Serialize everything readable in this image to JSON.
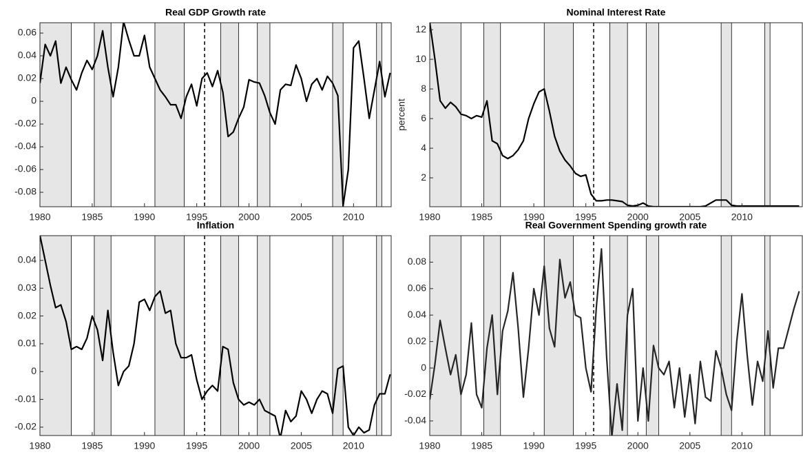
{
  "chart_data": [
    {
      "type": "line",
      "title": "Real GDP Growth rate",
      "x": [
        1980,
        1980.5,
        1981,
        1981.5,
        1982,
        1982.5,
        1983,
        1983.5,
        1984,
        1984.5,
        1985,
        1985.5,
        1986,
        1986.5,
        1987,
        1987.5,
        1988,
        1988.5,
        1989,
        1989.5,
        1990,
        1990.5,
        1991,
        1991.5,
        1992,
        1992.5,
        1993,
        1993.5,
        1994,
        1994.5,
        1995,
        1995.5,
        1996,
        1996.5,
        1997,
        1997.5,
        1998,
        1998.5,
        1999,
        1999.5,
        2000,
        2000.5,
        2001,
        2001.5,
        2002,
        2002.5,
        2003,
        2003.5,
        2004,
        2004.5,
        2005,
        2005.5,
        2006,
        2006.5,
        2007,
        2007.5,
        2008,
        2008.5,
        2009,
        2009.5,
        2010,
        2010.5,
        2011,
        2011.5,
        2012,
        2012.5,
        2013,
        2013.5
      ],
      "values": [
        0.016,
        0.05,
        0.04,
        0.053,
        0.016,
        0.03,
        0.019,
        0.01,
        0.025,
        0.036,
        0.028,
        0.04,
        0.062,
        0.03,
        0.004,
        0.03,
        0.07,
        0.054,
        0.04,
        0.04,
        0.058,
        0.03,
        0.02,
        0.01,
        0.004,
        -0.003,
        -0.003,
        -0.015,
        0.004,
        0.015,
        -0.004,
        0.02,
        0.025,
        0.013,
        0.027,
        0.008,
        -0.031,
        -0.027,
        -0.015,
        -0.005,
        0.019,
        0.017,
        0.016,
        0.005,
        -0.01,
        -0.02,
        0.01,
        0.015,
        0.014,
        0.032,
        0.02,
        0.0,
        0.015,
        0.02,
        0.01,
        0.022,
        0.016,
        0.005,
        -0.092,
        -0.06,
        0.047,
        0.053,
        0.02,
        -0.015,
        0.01,
        0.035,
        0.004,
        0.025
      ],
      "color": "#000000",
      "xlim": [
        1980,
        2013.6
      ],
      "xticks": [
        1980,
        1985,
        1990,
        1995,
        2000,
        2005,
        2010
      ],
      "ylim": [
        -0.0927,
        0.0691
      ],
      "yticks": [
        -0.08,
        -0.06,
        -0.04,
        -0.02,
        0,
        0.02,
        0.04,
        0.06
      ],
      "bands": [
        [
          1980,
          1983
        ],
        [
          1985.2,
          1986.8
        ],
        [
          1991,
          1993.8
        ],
        [
          1997.3,
          1999
        ],
        [
          2000.8,
          2002
        ],
        [
          2008,
          2009
        ],
        [
          2012.2,
          2012.7
        ]
      ],
      "vline": 1995.75
    },
    {
      "type": "line",
      "title": "Nominal Interest Rate",
      "ylabel": "percent",
      "x": [
        1980,
        1980.5,
        1981,
        1981.5,
        1982,
        1982.5,
        1983,
        1983.5,
        1984,
        1984.5,
        1985,
        1985.5,
        1986,
        1986.5,
        1987,
        1987.5,
        1988,
        1988.5,
        1989,
        1989.5,
        1990,
        1990.5,
        1991,
        1991.5,
        1992,
        1992.5,
        1993,
        1993.5,
        1994,
        1994.5,
        1995,
        1995.5,
        1996,
        1996.5,
        1997,
        1997.5,
        1998,
        1998.5,
        1999,
        1999.5,
        2000,
        2000.5,
        2001,
        2001.5,
        2002,
        2002.5,
        2003,
        2003.5,
        2004,
        2004.5,
        2005,
        2005.5,
        2006,
        2006.5,
        2007,
        2007.5,
        2008,
        2008.5,
        2009,
        2009.5,
        2010,
        2010.5,
        2011,
        2011.5,
        2012,
        2012.5,
        2013,
        2013.5,
        2014,
        2014.5,
        2015,
        2015.5
      ],
      "values": [
        12.5,
        10,
        7.2,
        6.7,
        7.1,
        6.8,
        6.3,
        6.2,
        6.0,
        6.2,
        6.1,
        7.2,
        4.5,
        4.3,
        3.5,
        3.3,
        3.5,
        3.9,
        4.5,
        6,
        7.0,
        7.8,
        8.0,
        6.5,
        4.8,
        3.8,
        3.2,
        2.8,
        2.3,
        2.1,
        2.2,
        0.9,
        0.45,
        0.45,
        0.5,
        0.5,
        0.45,
        0.4,
        0.15,
        0.1,
        0.15,
        0.3,
        0.1,
        0.05,
        0.05,
        0.05,
        0.05,
        0.05,
        0.05,
        0.05,
        0.05,
        0.05,
        0.05,
        0.1,
        0.3,
        0.5,
        0.5,
        0.5,
        0.15,
        0.1,
        0.1,
        0.1,
        0.1,
        0.1,
        0.1,
        0.1,
        0.1,
        0.1,
        0.1,
        0.1,
        0.1,
        0.1
      ],
      "color": "#000000",
      "xlim": [
        1980,
        2015.8
      ],
      "xticks": [
        1980,
        1985,
        1990,
        1995,
        2000,
        2005,
        2010
      ],
      "ylim": [
        0.05,
        12.47
      ],
      "yticks": [
        2,
        4,
        6,
        8,
        10,
        12
      ],
      "bands": [
        [
          1980,
          1983
        ],
        [
          1985.2,
          1986.8
        ],
        [
          1991,
          1993.8
        ],
        [
          1997.3,
          1999
        ],
        [
          2000.8,
          2002
        ],
        [
          2008,
          2009
        ],
        [
          2012.2,
          2012.7
        ]
      ],
      "vline": 1995.75
    },
    {
      "type": "line",
      "title": "Inflation",
      "x": [
        1980,
        1980.5,
        1981,
        1981.5,
        1982,
        1982.5,
        1983,
        1983.5,
        1984,
        1984.5,
        1985,
        1985.5,
        1986,
        1986.5,
        1987,
        1987.5,
        1988,
        1988.5,
        1989,
        1989.5,
        1990,
        1990.5,
        1991,
        1991.5,
        1992,
        1992.5,
        1993,
        1993.5,
        1994,
        1994.5,
        1995,
        1995.5,
        1996,
        1996.5,
        1997,
        1997.5,
        1998,
        1998.5,
        1999,
        1999.5,
        2000,
        2000.5,
        2001,
        2001.5,
        2002,
        2002.5,
        2003,
        2003.5,
        2004,
        2004.5,
        2005,
        2005.5,
        2006,
        2006.5,
        2007,
        2007.5,
        2008,
        2008.5,
        2009,
        2009.5,
        2010,
        2010.5,
        2011,
        2011.5,
        2012,
        2012.5,
        2013,
        2013.5
      ],
      "values": [
        0.049,
        0.04,
        0.031,
        0.023,
        0.024,
        0.018,
        0.008,
        0.009,
        0.008,
        0.012,
        0.02,
        0.015,
        0.004,
        0.022,
        0.007,
        -0.005,
        0.0,
        0.002,
        0.01,
        0.025,
        0.026,
        0.022,
        0.027,
        0.029,
        0.021,
        0.022,
        0.01,
        0.005,
        0.005,
        0.006,
        -0.003,
        -0.01,
        -0.007,
        -0.005,
        -0.007,
        0.009,
        0.008,
        -0.004,
        -0.01,
        -0.012,
        -0.011,
        -0.012,
        -0.01,
        -0.014,
        -0.015,
        -0.016,
        -0.024,
        -0.014,
        -0.018,
        -0.016,
        -0.007,
        -0.01,
        -0.015,
        -0.01,
        -0.007,
        -0.008,
        -0.015,
        0.001,
        0.002,
        -0.02,
        -0.023,
        -0.02,
        -0.022,
        -0.021,
        -0.012,
        -0.008,
        -0.008,
        -0.001
      ],
      "color": "#000000",
      "xlim": [
        1980,
        2013.6
      ],
      "xticks": [
        1980,
        1985,
        1990,
        1995,
        2000,
        2005,
        2010
      ],
      "ylim": [
        -0.023,
        0.0489
      ],
      "yticks": [
        -0.02,
        -0.01,
        0,
        0.01,
        0.02,
        0.03,
        0.04
      ],
      "bands": [
        [
          1980,
          1983
        ],
        [
          1985.2,
          1986.8
        ],
        [
          1991,
          1993.8
        ],
        [
          1997.3,
          1999
        ],
        [
          2000.8,
          2002
        ],
        [
          2008,
          2009
        ],
        [
          2012.2,
          2012.7
        ]
      ],
      "vline": 1995.75
    },
    {
      "type": "line",
      "title": "Real Government Spending growth rate",
      "x": [
        1980,
        1980.5,
        1981,
        1981.5,
        1982,
        1982.5,
        1983,
        1983.5,
        1984,
        1984.5,
        1985,
        1985.5,
        1986,
        1986.5,
        1987,
        1987.5,
        1988,
        1988.5,
        1989,
        1989.5,
        1990,
        1990.5,
        1991,
        1991.5,
        1992,
        1992.5,
        1993,
        1993.5,
        1994,
        1994.5,
        1995,
        1995.5,
        1996,
        1996.5,
        1997,
        1997.5,
        1998,
        1998.5,
        1999,
        1999.5,
        2000,
        2000.5,
        2001,
        2001.5,
        2002,
        2002.5,
        2003,
        2003.5,
        2004,
        2004.5,
        2005,
        2005.5,
        2006,
        2006.5,
        2007,
        2007.5,
        2008,
        2008.5,
        2009,
        2009.5,
        2010,
        2010.5,
        2011,
        2011.5,
        2012,
        2012.5,
        2013,
        2013.5,
        2014,
        2014.5,
        2015,
        2015.5
      ],
      "values": [
        -0.024,
        0.003,
        0.036,
        0.015,
        -0.005,
        0.01,
        -0.02,
        -0.005,
        0.034,
        -0.02,
        -0.03,
        0.015,
        0.04,
        -0.02,
        0.028,
        0.043,
        0.072,
        0.03,
        -0.022,
        0.015,
        0.06,
        0.04,
        0.077,
        0.03,
        0.016,
        0.082,
        0.053,
        0.065,
        0.04,
        0.038,
        0.0,
        -0.018,
        0.045,
        0.09,
        0.008,
        -0.052,
        -0.012,
        -0.047,
        0.04,
        0.06,
        -0.04,
        0.0,
        -0.04,
        0.017,
        0.0,
        -0.005,
        0.005,
        -0.03,
        0.0,
        -0.037,
        -0.005,
        -0.042,
        0.005,
        -0.022,
        -0.025,
        0.013,
        0.0,
        -0.02,
        -0.032,
        0.02,
        0.056,
        0.01,
        -0.028,
        0.005,
        -0.01,
        0.028,
        -0.015,
        0.015,
        0.015,
        0.03,
        0.045,
        0.058
      ],
      "color": "#262626",
      "xlim": [
        1980,
        2015.8
      ],
      "xticks": [
        1980,
        1985,
        1990,
        1995,
        2000,
        2005,
        2010
      ],
      "ylim": [
        -0.051,
        0.1
      ],
      "yticks": [
        -0.04,
        -0.02,
        0,
        0.02,
        0.04,
        0.06,
        0.08
      ],
      "bands": [
        [
          1980,
          1983
        ],
        [
          1985.2,
          1986.8
        ],
        [
          1991,
          1993.8
        ],
        [
          1997.3,
          1999
        ],
        [
          2000.8,
          2002
        ],
        [
          2008,
          2009
        ],
        [
          2012.2,
          2012.7
        ]
      ],
      "vline": 1995.75
    }
  ]
}
